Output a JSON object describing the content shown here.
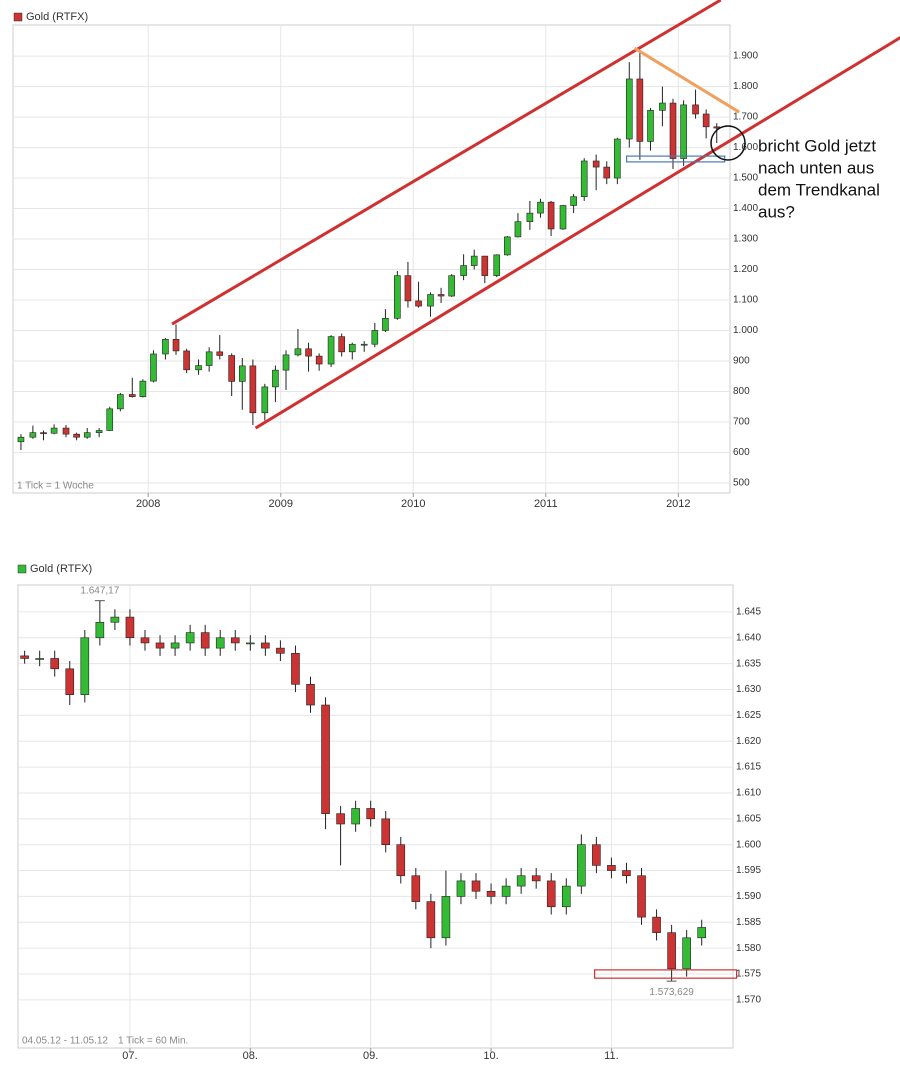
{
  "chart_data": [
    {
      "type": "candlestick",
      "series_name": "Gold (RTFX)",
      "legend_color": "#cc3333",
      "up_color": "#33bb33",
      "down_color": "#cc3333",
      "tick_note": "1 Tick = 1 Woche",
      "xlim": [
        2006.98,
        2012.39
      ],
      "xticks": [
        2008,
        2009,
        2010,
        2011,
        2012
      ],
      "ylim": [
        467,
        2002
      ],
      "yticks": [
        500,
        600,
        700,
        800,
        900,
        {
          "value": 1000,
          "label": "1.000"
        },
        {
          "value": 1100,
          "label": "1.100"
        },
        {
          "value": 1200,
          "label": "1.200"
        },
        {
          "value": 1300,
          "label": "1.300"
        },
        {
          "value": 1400,
          "label": "1.400"
        },
        {
          "value": 1500,
          "label": "1.500"
        },
        {
          "value": 1600,
          "label": "1.600"
        },
        {
          "value": 1700,
          "label": "1.700"
        },
        {
          "value": 1800,
          "label": "1.800"
        },
        {
          "value": 1900,
          "label": "1.900"
        }
      ],
      "grid": true,
      "x": [
        2007.04,
        2007.13,
        2007.21,
        2007.29,
        2007.38,
        2007.46,
        2007.54,
        2007.63,
        2007.71,
        2007.79,
        2007.88,
        2007.96,
        2008.04,
        2008.13,
        2008.21,
        2008.29,
        2008.38,
        2008.46,
        2008.54,
        2008.63,
        2008.71,
        2008.79,
        2008.88,
        2008.96,
        2009.04,
        2009.13,
        2009.21,
        2009.29,
        2009.38,
        2009.46,
        2009.54,
        2009.63,
        2009.71,
        2009.79,
        2009.88,
        2009.96,
        2010.04,
        2010.13,
        2010.21,
        2010.29,
        2010.38,
        2010.46,
        2010.54,
        2010.63,
        2010.71,
        2010.79,
        2010.88,
        2010.96,
        2011.04,
        2011.13,
        2011.21,
        2011.29,
        2011.38,
        2011.46,
        2011.54,
        2011.63,
        2011.71,
        2011.79,
        2011.88,
        2011.96,
        2012.04,
        2012.13,
        2012.21,
        2012.29
      ],
      "open": [
        635,
        650,
        665,
        663,
        680,
        660,
        650,
        665,
        672,
        743,
        790,
        783,
        834,
        923,
        971,
        933,
        871,
        885,
        930,
        918,
        833,
        884,
        730,
        815,
        870,
        920,
        940,
        916,
        890,
        980,
        930,
        955,
        955,
        1000,
        1040,
        1180,
        1097,
        1080,
        1118,
        1113,
        1180,
        1213,
        1244,
        1180,
        1248,
        1307,
        1357,
        1385,
        1421,
        1333,
        1410,
        1439,
        1556,
        1536,
        1500,
        1628,
        1825,
        1620,
        1722,
        1746,
        1564,
        1740,
        1710,
        1668
      ],
      "high": [
        660,
        688,
        672,
        692,
        690,
        665,
        680,
        680,
        750,
        795,
        845,
        840,
        935,
        975,
        1020,
        940,
        905,
        945,
        985,
        925,
        910,
        905,
        825,
        885,
        935,
        1005,
        960,
        925,
        985,
        990,
        960,
        965,
        1025,
        1070,
        1195,
        1225,
        1160,
        1125,
        1140,
        1185,
        1250,
        1265,
        1245,
        1250,
        1310,
        1385,
        1425,
        1432,
        1425,
        1412,
        1448,
        1565,
        1577,
        1555,
        1632,
        1880,
        1920,
        1730,
        1800,
        1760,
        1755,
        1790,
        1725,
        1680
      ],
      "low": [
        608,
        645,
        640,
        660,
        650,
        640,
        645,
        650,
        670,
        735,
        780,
        780,
        830,
        905,
        920,
        860,
        855,
        865,
        905,
        785,
        740,
        690,
        705,
        765,
        805,
        915,
        865,
        868,
        880,
        915,
        905,
        930,
        945,
        995,
        1035,
        1075,
        1075,
        1045,
        1090,
        1110,
        1165,
        1200,
        1155,
        1175,
        1245,
        1305,
        1330,
        1370,
        1310,
        1330,
        1385,
        1425,
        1460,
        1480,
        1480,
        1600,
        1560,
        1590,
        1670,
        1530,
        1540,
        1695,
        1630,
        1615
      ],
      "close": [
        650,
        665,
        663,
        680,
        660,
        650,
        665,
        672,
        743,
        790,
        783,
        834,
        923,
        971,
        933,
        871,
        885,
        930,
        918,
        833,
        884,
        730,
        815,
        870,
        920,
        940,
        916,
        890,
        980,
        930,
        955,
        955,
        1000,
        1040,
        1180,
        1097,
        1080,
        1118,
        1113,
        1180,
        1213,
        1244,
        1180,
        1248,
        1307,
        1357,
        1385,
        1421,
        1333,
        1410,
        1439,
        1556,
        1536,
        1500,
        1628,
        1825,
        1620,
        1722,
        1746,
        1564,
        1740,
        1710,
        1668,
        1664
      ],
      "trendlines": [
        {
          "color": "#d03030",
          "points": [
            [
              2008.18,
              1021
            ],
            [
              2012.32,
              2084
            ]
          ]
        },
        {
          "color": "#d03030",
          "points": [
            [
              2008.81,
              680
            ],
            [
              2013.68,
              1962
            ]
          ]
        },
        {
          "color": "#f0a060",
          "points": [
            [
              2011.67,
              1926
            ],
            [
              2012.46,
              1716
            ]
          ]
        }
      ],
      "box": {
        "color": "#4a7ab5",
        "x": [
          2011.61,
          2012.35
        ],
        "y": [
          1553,
          1572
        ]
      },
      "note_lines": [
        "bricht Gold jetzt",
        "nach unten aus",
        "dem Trendkanal",
        "aus?"
      ]
    },
    {
      "type": "candlestick",
      "series_name": "Gold (RTFX)",
      "legend_color": "#33bb33",
      "up_color": "#33bb33",
      "down_color": "#cc3333",
      "date_range": "04.05.12 - 11.05.12",
      "tick_note": "1 Tick = 60 Min.",
      "xlim": [
        6.07,
        12.01
      ],
      "xticks": [
        {
          "value": 7,
          "label": "07."
        },
        {
          "value": 8,
          "label": "08."
        },
        {
          "value": 9,
          "label": "09."
        },
        {
          "value": 10,
          "label": "10."
        },
        {
          "value": 11,
          "label": "11."
        }
      ],
      "ylim": [
        1560.7,
        1650.2
      ],
      "yticks": [
        {
          "value": 1570,
          "label": "1.570"
        },
        {
          "value": 1575,
          "label": "1.575"
        },
        {
          "value": 1580,
          "label": "1.580"
        },
        {
          "value": 1585,
          "label": "1.585"
        },
        {
          "value": 1590,
          "label": "1.590"
        },
        {
          "value": 1595,
          "label": "1.595"
        },
        {
          "value": 1600,
          "label": "1.600"
        },
        {
          "value": 1605,
          "label": "1.605"
        },
        {
          "value": 1610,
          "label": "1.610"
        },
        {
          "value": 1615,
          "label": "1.615"
        },
        {
          "value": 1620,
          "label": "1.620"
        },
        {
          "value": 1625,
          "label": "1.625"
        },
        {
          "value": 1630,
          "label": "1.630"
        },
        {
          "value": 1635,
          "label": "1.635"
        },
        {
          "value": 1640,
          "label": "1.640"
        },
        {
          "value": 1645,
          "label": "1.645"
        }
      ],
      "grid": true,
      "x": [
        6.125,
        6.25,
        6.375,
        6.5,
        6.625,
        6.75,
        6.875,
        7,
        7.125,
        7.25,
        7.375,
        7.5,
        7.625,
        7.75,
        7.875,
        8,
        8.125,
        8.25,
        8.375,
        8.5,
        8.625,
        8.75,
        8.875,
        9,
        9.125,
        9.25,
        9.375,
        9.5,
        9.625,
        9.75,
        9.875,
        10,
        10.125,
        10.25,
        10.375,
        10.5,
        10.625,
        10.75,
        10.875,
        11,
        11.125,
        11.25,
        11.375,
        11.5,
        11.625,
        11.75
      ],
      "open": [
        1636.5,
        1636,
        1636,
        1634,
        1629,
        1640,
        1643,
        1644,
        1640,
        1639,
        1638,
        1639,
        1641,
        1638,
        1640,
        1639,
        1639,
        1638,
        1637,
        1631,
        1627,
        1606,
        1604,
        1607,
        1605,
        1600,
        1594,
        1589,
        1582,
        1590,
        1593,
        1591,
        1590,
        1592,
        1594,
        1593,
        1588,
        1592,
        1600,
        1596,
        1595,
        1594,
        1586,
        1583,
        1576,
        1582
      ],
      "high": [
        1637.5,
        1637.5,
        1637.5,
        1635.5,
        1641.5,
        1647.17,
        1645.5,
        1645.5,
        1641.5,
        1640.5,
        1640.5,
        1642.5,
        1642.5,
        1641.5,
        1641.5,
        1640.5,
        1640.5,
        1639.5,
        1638.5,
        1632.5,
        1628.5,
        1607.5,
        1608.5,
        1608.5,
        1606.5,
        1601.5,
        1595.5,
        1590.5,
        1595,
        1594.5,
        1594.5,
        1592.5,
        1593.5,
        1595.5,
        1595.5,
        1594.5,
        1593.5,
        1602,
        1601.5,
        1597.5,
        1596.5,
        1595.5,
        1587.5,
        1584.5,
        1583.5,
        1585.5
      ],
      "low": [
        1635,
        1634.5,
        1632.5,
        1627,
        1627.5,
        1638.5,
        1641.5,
        1638.5,
        1637.5,
        1636.5,
        1636.5,
        1637.5,
        1636.5,
        1636.5,
        1637.5,
        1637.5,
        1636.5,
        1635.5,
        1629.5,
        1625.5,
        1603,
        1596,
        1602.5,
        1603.5,
        1598.5,
        1592.5,
        1587.5,
        1580,
        1580.5,
        1588.5,
        1589.5,
        1588.5,
        1588.5,
        1590.5,
        1591.5,
        1586.5,
        1586.5,
        1590.5,
        1594.5,
        1593.5,
        1592.5,
        1584.5,
        1581.5,
        1573.629,
        1574.5,
        1580.5
      ],
      "close": [
        1636,
        1636,
        1634,
        1629,
        1640,
        1643,
        1644,
        1640,
        1639,
        1638,
        1639,
        1641,
        1638,
        1640,
        1639,
        1639,
        1638,
        1637,
        1631,
        1627,
        1606,
        1604,
        1607,
        1605,
        1600,
        1594,
        1589,
        1582,
        1590,
        1593,
        1591,
        1590,
        1592,
        1594,
        1593,
        1588,
        1592,
        1600,
        1596,
        1595,
        1594,
        1586,
        1583,
        1576,
        1582,
        1584
      ],
      "extremes": [
        {
          "x": 6.75,
          "value": 1647.17,
          "label": "1.647,17",
          "side": "above"
        },
        {
          "x": 11.5,
          "value": 1573.629,
          "label": "1.573,629",
          "side": "below"
        }
      ],
      "box": {
        "color": "#cc3333",
        "x": [
          10.86,
          12.04
        ],
        "y": [
          1574.2,
          1575.8
        ]
      }
    }
  ]
}
